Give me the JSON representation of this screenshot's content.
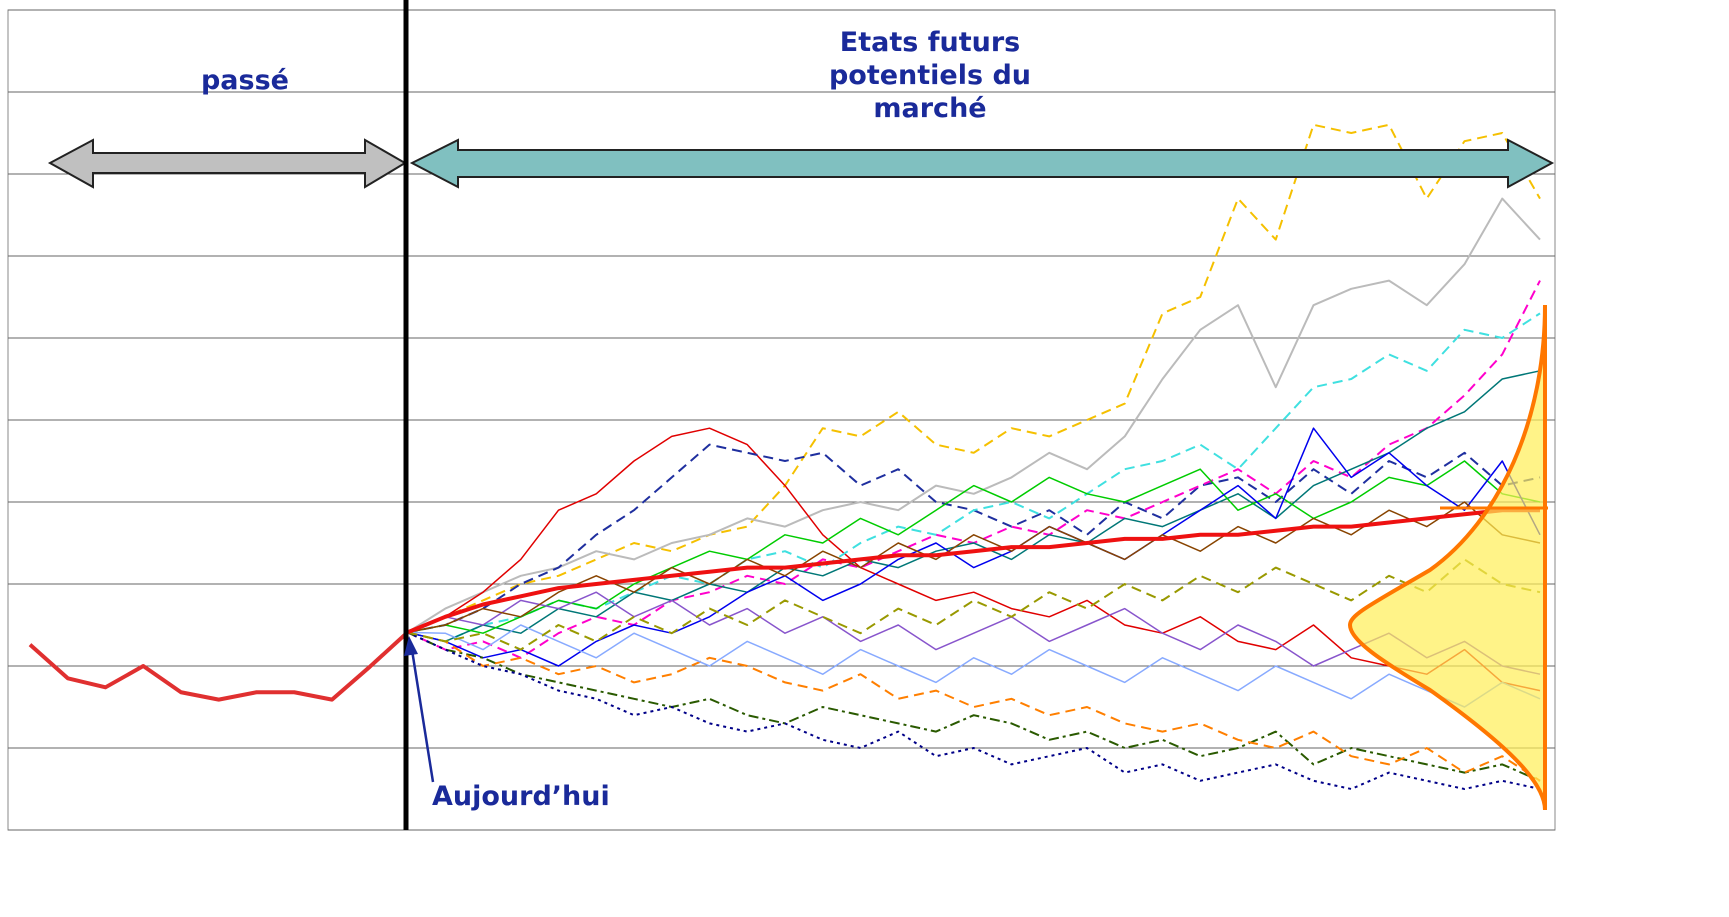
{
  "chart_data": {
    "type": "line",
    "labels": {
      "past": "passé",
      "future": "Etats futurs potentiels du marché",
      "today": "Aujourd’hui"
    },
    "x": [
      0,
      1,
      2,
      3,
      4,
      5,
      6,
      7,
      8,
      9,
      10,
      11,
      12,
      13,
      14,
      15,
      16,
      17,
      18,
      19,
      20,
      21,
      22,
      23,
      24,
      25,
      26,
      27,
      28,
      29,
      30,
      31,
      32,
      33,
      34,
      35,
      36,
      37,
      38,
      39,
      40
    ],
    "xlim": [
      0,
      40
    ],
    "ylim": [
      0,
      10
    ],
    "yticks": [
      0,
      1,
      2,
      3,
      4,
      5,
      6,
      7,
      8,
      9,
      10
    ],
    "grid": true,
    "series": [
      {
        "color": "#f5c000",
        "style": "dashed",
        "line_width": 2,
        "values": [
          null,
          null,
          null,
          null,
          null,
          null,
          null,
          null,
          null,
          null,
          2.41,
          2.6,
          2.8,
          3.0,
          3.1,
          3.3,
          3.5,
          3.4,
          3.6,
          3.7,
          4.2,
          4.9,
          4.8,
          5.1,
          4.7,
          4.6,
          4.9,
          4.8,
          5.0,
          5.2,
          6.3,
          6.5,
          7.7,
          7.2,
          8.6,
          8.5,
          8.6,
          7.7,
          8.4,
          8.5,
          7.7
        ]
      },
      {
        "color": "#bbbbbb",
        "style": "solid",
        "line_width": 2,
        "values": [
          null,
          null,
          null,
          null,
          null,
          null,
          null,
          null,
          null,
          null,
          2.41,
          2.7,
          2.9,
          3.1,
          3.2,
          3.4,
          3.3,
          3.5,
          3.6,
          3.8,
          3.7,
          3.9,
          4.0,
          3.9,
          4.2,
          4.1,
          4.3,
          4.6,
          4.4,
          4.8,
          5.5,
          6.1,
          6.4,
          5.4,
          6.4,
          6.6,
          6.7,
          6.4,
          6.9,
          7.7,
          7.2
        ]
      },
      {
        "color": "#e00000",
        "style": "solid",
        "line_width": 1.5,
        "values": [
          null,
          null,
          null,
          null,
          null,
          null,
          null,
          null,
          null,
          null,
          2.41,
          2.6,
          2.9,
          3.3,
          3.9,
          4.1,
          4.5,
          4.8,
          4.9,
          4.7,
          4.2,
          3.6,
          3.2,
          3.0,
          2.8,
          2.9,
          2.7,
          2.6,
          2.8,
          2.5,
          2.4,
          2.6,
          2.3,
          2.2,
          2.5,
          2.1,
          2.0,
          1.9,
          2.2,
          1.8,
          1.7
        ]
      },
      {
        "color": "#1f2f9f",
        "style": "dashed",
        "line_width": 2,
        "values": [
          null,
          null,
          null,
          null,
          null,
          null,
          null,
          null,
          null,
          null,
          2.41,
          2.5,
          2.7,
          3.0,
          3.2,
          3.6,
          3.9,
          4.3,
          4.7,
          4.6,
          4.5,
          4.6,
          4.2,
          4.4,
          4.0,
          3.9,
          3.7,
          3.9,
          3.6,
          4.0,
          3.8,
          4.2,
          4.3,
          4.0,
          4.4,
          4.1,
          4.5,
          4.3,
          4.6,
          4.2,
          4.3
        ]
      },
      {
        "color": "#3fe0e0",
        "style": "dashed",
        "line_width": 2,
        "values": [
          null,
          null,
          null,
          null,
          null,
          null,
          null,
          null,
          null,
          null,
          2.41,
          2.3,
          2.5,
          2.6,
          2.8,
          2.7,
          2.9,
          3.1,
          3.0,
          3.3,
          3.4,
          3.2,
          3.5,
          3.7,
          3.6,
          3.9,
          4.0,
          3.8,
          4.1,
          4.4,
          4.5,
          4.7,
          4.4,
          4.9,
          5.4,
          5.5,
          5.8,
          5.6,
          6.1,
          6.0,
          6.3
        ]
      },
      {
        "color": "#ff00cc",
        "style": "dashed",
        "line_width": 2,
        "values": [
          null,
          null,
          null,
          null,
          null,
          null,
          null,
          null,
          null,
          null,
          2.41,
          2.2,
          2.3,
          2.1,
          2.4,
          2.6,
          2.5,
          2.8,
          2.9,
          3.1,
          3.0,
          3.3,
          3.2,
          3.4,
          3.6,
          3.5,
          3.7,
          3.6,
          3.9,
          3.8,
          4.0,
          4.2,
          4.4,
          4.1,
          4.5,
          4.3,
          4.7,
          4.9,
          5.3,
          5.8,
          6.7
        ]
      },
      {
        "color": "#007777",
        "style": "solid",
        "line_width": 1.5,
        "values": [
          null,
          null,
          null,
          null,
          null,
          null,
          null,
          null,
          null,
          null,
          2.41,
          2.3,
          2.5,
          2.4,
          2.7,
          2.6,
          2.9,
          2.8,
          3.0,
          2.9,
          3.2,
          3.1,
          3.3,
          3.2,
          3.4,
          3.5,
          3.3,
          3.6,
          3.5,
          3.8,
          3.7,
          3.9,
          4.1,
          3.8,
          4.2,
          4.4,
          4.6,
          4.9,
          5.1,
          5.5,
          5.6
        ]
      },
      {
        "color": "#00cc00",
        "style": "solid",
        "line_width": 1.5,
        "values": [
          null,
          null,
          null,
          null,
          null,
          null,
          null,
          null,
          null,
          null,
          2.41,
          2.5,
          2.4,
          2.6,
          2.8,
          2.7,
          3.0,
          3.2,
          3.4,
          3.3,
          3.6,
          3.5,
          3.8,
          3.6,
          3.9,
          4.2,
          4.0,
          4.3,
          4.1,
          4.0,
          4.2,
          4.4,
          3.9,
          4.1,
          3.8,
          4.0,
          4.3,
          4.2,
          4.5,
          4.1,
          4.0
        ]
      },
      {
        "color": "#0000ee",
        "style": "solid",
        "line_width": 1.5,
        "values": [
          null,
          null,
          null,
          null,
          null,
          null,
          null,
          null,
          null,
          null,
          2.41,
          2.3,
          2.1,
          2.2,
          2.0,
          2.3,
          2.5,
          2.4,
          2.6,
          2.9,
          3.1,
          2.8,
          3.0,
          3.3,
          3.5,
          3.2,
          3.4,
          3.7,
          3.5,
          3.3,
          3.6,
          3.9,
          4.2,
          3.8,
          4.9,
          4.3,
          4.6,
          4.2,
          3.9,
          4.5,
          3.6
        ]
      },
      {
        "color": "#2a5a00",
        "style": "dashdot",
        "line_width": 2,
        "values": [
          null,
          null,
          null,
          null,
          null,
          null,
          null,
          null,
          null,
          null,
          2.41,
          2.2,
          2.1,
          1.9,
          1.8,
          1.7,
          1.6,
          1.5,
          1.6,
          1.4,
          1.3,
          1.5,
          1.4,
          1.3,
          1.2,
          1.4,
          1.3,
          1.1,
          1.2,
          1.0,
          1.1,
          0.9,
          1.0,
          1.2,
          0.8,
          1.0,
          0.9,
          0.8,
          0.7,
          0.8,
          0.6
        ]
      },
      {
        "color": "#ff7f00",
        "style": "dashed",
        "line_width": 2,
        "values": [
          null,
          null,
          null,
          null,
          null,
          null,
          null,
          null,
          null,
          null,
          2.41,
          2.3,
          2.0,
          2.1,
          1.9,
          2.0,
          1.8,
          1.9,
          2.1,
          2.0,
          1.8,
          1.7,
          1.9,
          1.6,
          1.7,
          1.5,
          1.6,
          1.4,
          1.5,
          1.3,
          1.2,
          1.3,
          1.1,
          1.0,
          1.2,
          0.9,
          0.8,
          1.0,
          0.7,
          0.9,
          0.6
        ]
      },
      {
        "color": "#000088",
        "style": "dotted",
        "line_width": 2,
        "values": [
          null,
          null,
          null,
          null,
          null,
          null,
          null,
          null,
          null,
          null,
          2.41,
          2.2,
          2.0,
          1.9,
          1.7,
          1.6,
          1.4,
          1.5,
          1.3,
          1.2,
          1.3,
          1.1,
          1.0,
          1.2,
          0.9,
          1.0,
          0.8,
          0.9,
          1.0,
          0.7,
          0.8,
          0.6,
          0.7,
          0.8,
          0.6,
          0.5,
          0.7,
          0.6,
          0.5,
          0.6,
          0.5
        ]
      },
      {
        "color": "#8855cc",
        "style": "solid",
        "line_width": 1.5,
        "values": [
          null,
          null,
          null,
          null,
          null,
          null,
          null,
          null,
          null,
          null,
          2.41,
          2.6,
          2.5,
          2.8,
          2.7,
          2.9,
          2.6,
          2.8,
          2.5,
          2.7,
          2.4,
          2.6,
          2.3,
          2.5,
          2.2,
          2.4,
          2.6,
          2.3,
          2.5,
          2.7,
          2.4,
          2.2,
          2.5,
          2.3,
          2.0,
          2.2,
          2.4,
          2.1,
          2.3,
          2.0,
          1.9
        ]
      },
      {
        "color": "#884400",
        "style": "solid",
        "line_width": 1.5,
        "values": [
          null,
          null,
          null,
          null,
          null,
          null,
          null,
          null,
          null,
          null,
          2.41,
          2.5,
          2.7,
          2.6,
          2.9,
          3.1,
          2.9,
          3.2,
          3.0,
          3.3,
          3.1,
          3.4,
          3.2,
          3.5,
          3.3,
          3.6,
          3.4,
          3.7,
          3.5,
          3.3,
          3.6,
          3.4,
          3.7,
          3.5,
          3.8,
          3.6,
          3.9,
          3.7,
          4.0,
          3.6,
          3.5
        ]
      },
      {
        "color": "#88aaff",
        "style": "solid",
        "line_width": 1.5,
        "values": [
          null,
          null,
          null,
          null,
          null,
          null,
          null,
          null,
          null,
          null,
          2.41,
          2.4,
          2.2,
          2.5,
          2.3,
          2.1,
          2.4,
          2.2,
          2.0,
          2.3,
          2.1,
          1.9,
          2.2,
          2.0,
          1.8,
          2.1,
          1.9,
          2.2,
          2.0,
          1.8,
          2.1,
          1.9,
          1.7,
          2.0,
          1.8,
          1.6,
          1.9,
          1.7,
          1.5,
          1.8,
          1.6
        ]
      },
      {
        "color": "#999900",
        "style": "dashed",
        "line_width": 2,
        "values": [
          null,
          null,
          null,
          null,
          null,
          null,
          null,
          null,
          null,
          null,
          2.41,
          2.3,
          2.4,
          2.2,
          2.5,
          2.3,
          2.6,
          2.4,
          2.7,
          2.5,
          2.8,
          2.6,
          2.4,
          2.7,
          2.5,
          2.8,
          2.6,
          2.9,
          2.7,
          3.0,
          2.8,
          3.1,
          2.9,
          3.2,
          3.0,
          2.8,
          3.1,
          2.9,
          3.3,
          3.0,
          2.9
        ]
      },
      {
        "color": "#ee1111",
        "style": "solid",
        "line_width": 4,
        "values": [
          null,
          null,
          null,
          null,
          null,
          null,
          null,
          null,
          null,
          null,
          2.41,
          2.6,
          2.75,
          2.85,
          2.95,
          3.0,
          3.05,
          3.1,
          3.15,
          3.2,
          3.2,
          3.25,
          3.3,
          3.35,
          3.35,
          3.4,
          3.45,
          3.45,
          3.5,
          3.55,
          3.55,
          3.6,
          3.6,
          3.65,
          3.7,
          3.7,
          3.75,
          3.8,
          3.85,
          3.9,
          3.9
        ]
      },
      {
        "color": "#e03030",
        "style": "solid",
        "line_width": 4,
        "values": [
          2.26,
          1.85,
          1.74,
          2.0,
          1.68,
          1.59,
          1.68,
          1.68,
          1.59,
          1.99,
          2.41,
          null,
          null,
          null,
          null,
          null,
          null,
          null,
          null,
          null,
          null,
          null,
          null,
          null,
          null,
          null,
          null,
          null,
          null,
          null,
          null,
          null,
          null,
          null,
          null,
          null,
          null,
          null,
          null,
          null,
          null
        ]
      }
    ]
  }
}
